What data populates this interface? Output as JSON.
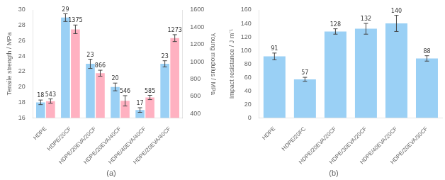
{
  "chart_data": [
    {
      "type": "bar",
      "title": "(a)",
      "categories": [
        "HDPE",
        "HDPE/20CF",
        "HDPE/20EVA/20CF",
        "HDPE/20EVA/40CF",
        "HDPE/40EVA/40CF",
        "HDPE/20EVA/40CF"
      ],
      "series": [
        {
          "values": [
            18,
            29,
            23,
            20,
            17,
            23
          ],
          "errors": [
            0.3,
            0.5,
            0.6,
            0.5,
            0.3,
            0.4
          ]
        },
        {
          "values": [
            543,
            1375,
            866,
            546,
            585,
            1273
          ],
          "errors": [
            25,
            50,
            35,
            60,
            25,
            40
          ],
          "axis": "y2"
        }
      ],
      "ylabel": "Tensile strength / MPa",
      "y2label": "Young modulus / MPa",
      "ylim": [
        16,
        30
      ],
      "yticks": [
        16,
        18,
        20,
        22,
        24,
        26,
        28,
        30
      ],
      "y2lim": [
        350,
        1600
      ],
      "y2ticks": [
        400,
        600,
        800,
        1000,
        1200,
        1400,
        1600
      ],
      "data_labels": true,
      "grid": false
    },
    {
      "type": "bar",
      "title": "(b)",
      "categories": [
        "HDPE",
        "HDPE/20FC",
        "HDPE/20EVA/20CF",
        "HDPE/30EVA/20CF",
        "HDPE/40EVA/20CF",
        "HDPE/20EVA/30CF"
      ],
      "values": [
        91,
        57,
        128,
        132,
        140,
        88
      ],
      "errors": [
        5,
        3,
        4,
        8,
        12,
        4
      ],
      "ylabel": "Impact resistance / J m⁻¹",
      "ylim": [
        0,
        160
      ],
      "yticks": [
        0,
        20,
        40,
        60,
        80,
        100,
        120,
        140,
        160
      ],
      "data_labels": true,
      "grid": false
    }
  ]
}
